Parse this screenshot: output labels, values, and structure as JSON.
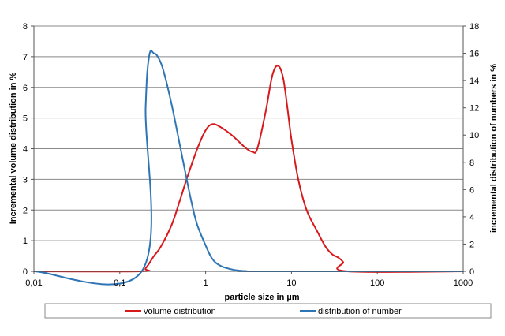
{
  "chart_data": {
    "type": "line",
    "xlabel": "particle size in µm",
    "ylabel_left": "Incremental volume distribution in %",
    "ylabel_right": "incremental distribution of numbers in %",
    "x_scale": "log",
    "xlim": [
      0.01,
      1000
    ],
    "ylim_left": [
      0,
      8
    ],
    "ylim_right": [
      0,
      18
    ],
    "x_ticks": [
      "0,01",
      "0,1",
      "1",
      "10",
      "100",
      "1000"
    ],
    "y_ticks_left": [
      "0",
      "1",
      "2",
      "3",
      "4",
      "5",
      "6",
      "7",
      "8"
    ],
    "y_ticks_right": [
      "0",
      "2",
      "4",
      "6",
      "8",
      "10",
      "12",
      "14",
      "16",
      "18"
    ],
    "grid": "horizontal",
    "legend_position": "bottom",
    "series": [
      {
        "name": "volume distribution",
        "axis": "left",
        "color": "#d7191c",
        "x": [
          0.01,
          0.17,
          0.2,
          0.25,
          0.3,
          0.4,
          0.5,
          0.6,
          0.8,
          1.0,
          1.2,
          1.5,
          2.0,
          2.5,
          3.0,
          3.5,
          4.0,
          5.0,
          6.0,
          7.0,
          8.0,
          9.0,
          10.0,
          12.0,
          15.0,
          20.0,
          25.0,
          30.0,
          35.0,
          40.0,
          45.0,
          1000.0
        ],
        "y": [
          0,
          0,
          0.1,
          0.5,
          0.8,
          1.5,
          2.3,
          3.0,
          4.0,
          4.6,
          4.8,
          4.7,
          4.45,
          4.2,
          4.0,
          3.9,
          4.0,
          5.2,
          6.4,
          6.7,
          6.3,
          5.3,
          4.3,
          3.0,
          2.0,
          1.3,
          0.8,
          0.55,
          0.45,
          0.3,
          0.0,
          0
        ]
      },
      {
        "name": "distribution of number",
        "axis": "right",
        "color": "#2e75b6",
        "x": [
          0.01,
          0.18,
          0.2,
          0.22,
          0.25,
          0.28,
          0.32,
          0.4,
          0.5,
          0.6,
          0.7,
          0.8,
          1.0,
          1.2,
          1.5,
          2.0,
          2.5,
          3.0,
          4.0,
          1000.0
        ],
        "y": [
          0,
          0,
          12.0,
          15.8,
          16.0,
          15.7,
          14.8,
          12.3,
          9.3,
          6.8,
          4.8,
          3.4,
          1.9,
          0.9,
          0.4,
          0.15,
          0.05,
          0.02,
          0,
          0
        ]
      }
    ]
  },
  "colors": {
    "volume": "#d7191c",
    "number": "#2e75b6",
    "grid": "#898989",
    "axis": "#555555"
  }
}
